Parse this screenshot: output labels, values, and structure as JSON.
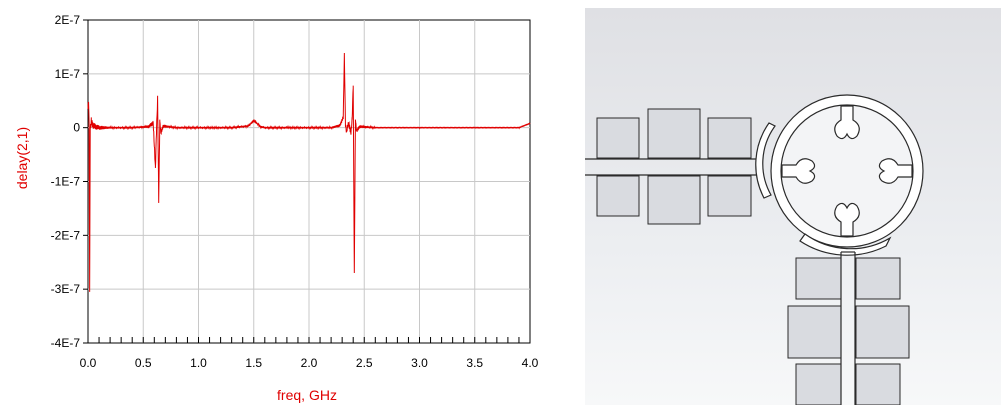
{
  "chart_data": {
    "type": "line",
    "xlabel": "freq, GHz",
    "ylabel": "delay(2,1)",
    "xlim": [
      0.0,
      4.0
    ],
    "ylim": [
      -4e-07,
      2e-07
    ],
    "x_ticks": [
      "0.0",
      "0.5",
      "1.0",
      "1.5",
      "2.0",
      "2.5",
      "3.0",
      "3.5",
      "4.0"
    ],
    "y_ticks": [
      "2E-7",
      "1E-7",
      "0",
      "-1E-7",
      "-2E-7",
      "-3E-7",
      "-4E-7"
    ],
    "grid": true,
    "series": [
      {
        "color": "#e00000",
        "x": [
          0.0,
          0.005,
          0.01,
          0.015,
          0.02,
          0.03,
          0.05,
          0.1,
          0.2,
          0.4,
          0.55,
          0.59,
          0.61,
          0.62,
          0.63,
          0.64,
          0.65,
          0.66,
          0.68,
          0.8,
          1.0,
          1.3,
          1.45,
          1.5,
          1.53,
          1.56,
          1.6,
          1.8,
          2.0,
          2.2,
          2.28,
          2.31,
          2.32,
          2.33,
          2.34,
          2.35,
          2.36,
          2.38,
          2.39,
          2.4,
          2.41,
          2.42,
          2.43,
          2.46,
          2.6,
          3.0,
          3.5,
          3.9,
          4.0
        ],
        "values": [
          3.5e-08,
          4.8e-08,
          5e-09,
          -3.05e-07,
          -5e-09,
          1.2e-08,
          3e-09,
          0.0,
          0.0,
          0.0,
          2e-09,
          9e-09,
          -7.5e-08,
          -5e-09,
          5.3e-08,
          -1.35e-07,
          1.2e-08,
          -1e-08,
          3e-09,
          0.0,
          0.0,
          0.0,
          3e-09,
          1.3e-08,
          8e-09,
          2e-09,
          0.0,
          0.0,
          0.0,
          0.0,
          4e-09,
          2e-08,
          1.35e-07,
          5e-09,
          -8e-09,
          3e-09,
          8e-09,
          -1e-08,
          1.5e-08,
          7.8e-08,
          -2.7e-07,
          1.5e-08,
          -6e-09,
          2e-09,
          0.0,
          0.0,
          0.0,
          0.0,
          8e-09
        ]
      }
    ]
  },
  "layout_colors": {
    "background": "#e8e9ec",
    "pad_fill": "#d9dbe0",
    "metal_line": "#2a2a2a"
  }
}
